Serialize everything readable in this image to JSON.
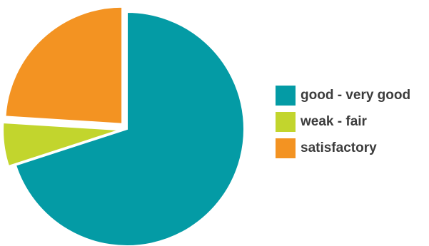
{
  "chart_data": {
    "type": "pie",
    "slices": [
      {
        "label": "good - very good",
        "value": 70,
        "color": "#049BA5"
      },
      {
        "label": "weak - fair",
        "value": 6,
        "color": "#C2D52D"
      },
      {
        "label": "satisfactory",
        "value": 24,
        "color": "#F39322"
      }
    ],
    "legend_position": "right",
    "exploded": true
  }
}
